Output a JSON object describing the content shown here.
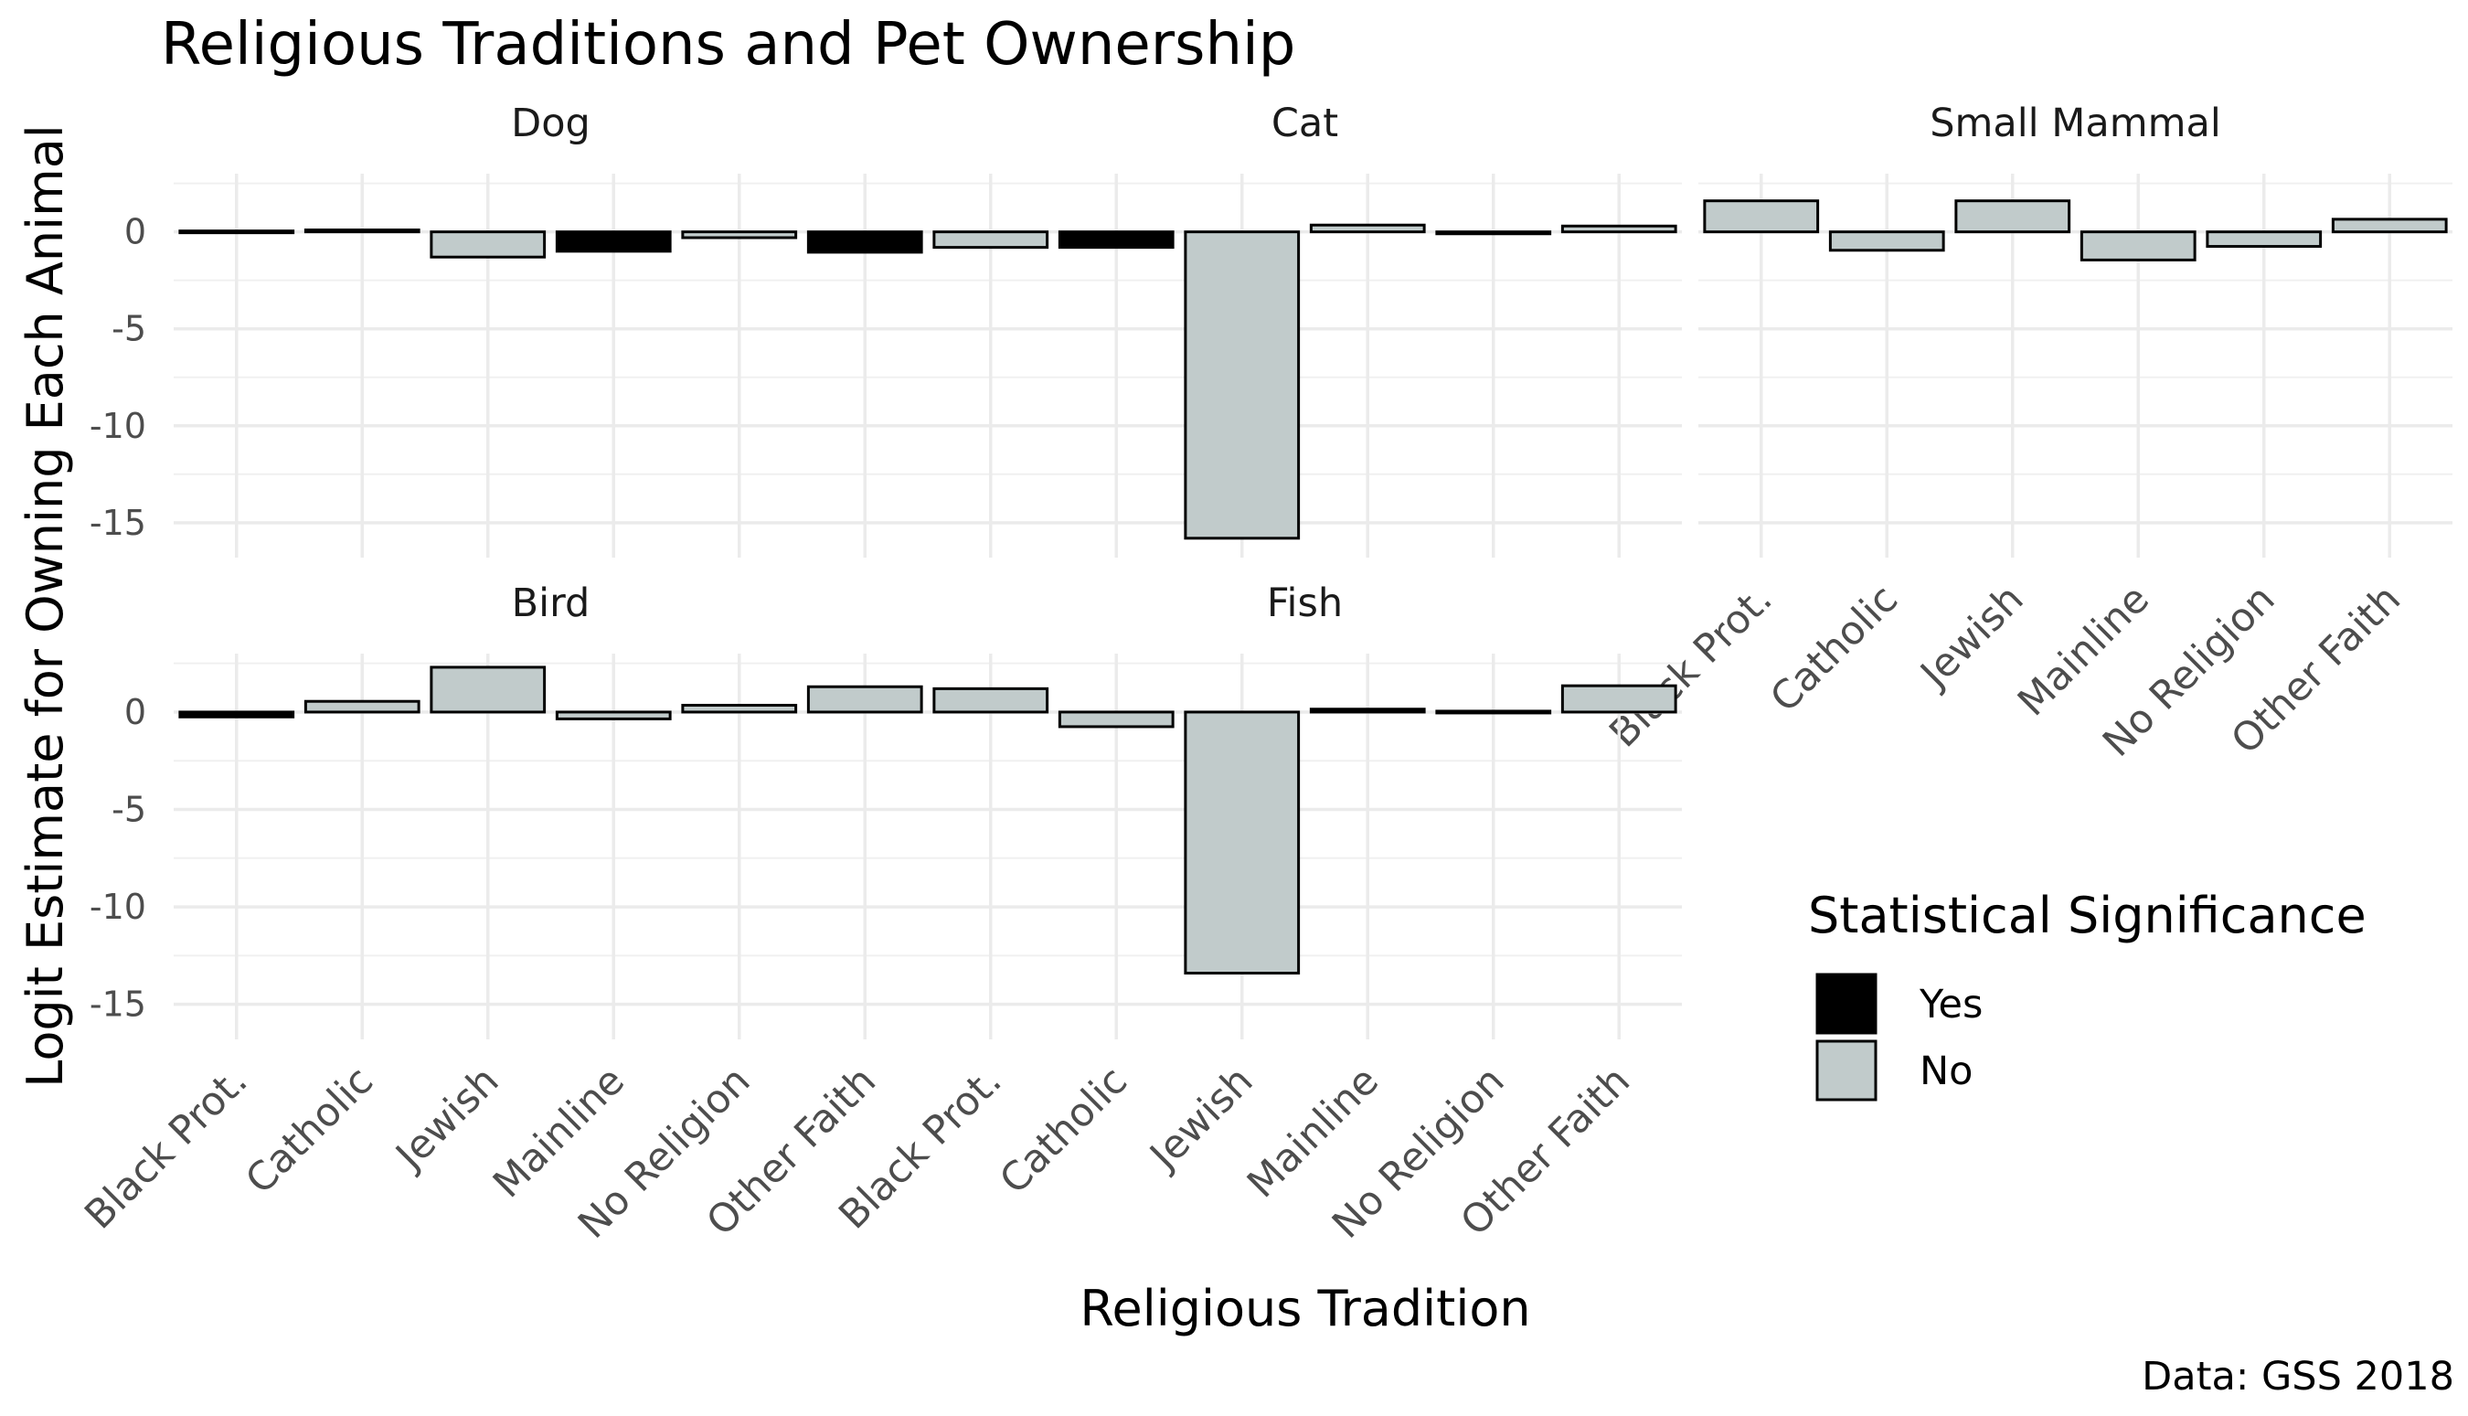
{
  "chart_data": {
    "type": "bar",
    "title": "Religious Traditions and Pet Ownership",
    "xlabel": "Religious Tradition",
    "ylabel": "Logit Estimate for Owning Each Animal",
    "caption": "Data: GSS 2018",
    "categories": [
      "Black Prot.",
      "Catholic",
      "Jewish",
      "Mainline",
      "No Religion",
      "Other Faith"
    ],
    "yticks": [
      0,
      -5,
      -10,
      -15
    ],
    "ylim": [
      -16.8,
      3.0
    ],
    "grid": true,
    "legend": {
      "title": "Statistical Significance",
      "position": "right",
      "entries": [
        {
          "label": "Yes",
          "color": "#000000"
        },
        {
          "label": "No",
          "color": "#c1cbcb"
        }
      ]
    },
    "panels": [
      {
        "name": "Dog",
        "values": [
          -0.05,
          0.1,
          -1.3,
          -1.0,
          -0.3,
          -1.05
        ],
        "significant": [
          "Yes",
          "Yes",
          "No",
          "Yes",
          "No",
          "Yes"
        ]
      },
      {
        "name": "Cat",
        "values": [
          -0.8,
          -0.8,
          -15.8,
          0.35,
          -0.1,
          0.3
        ],
        "significant": [
          "No",
          "Yes",
          "No",
          "No",
          "No",
          "No"
        ]
      },
      {
        "name": "Small Mammal",
        "values": [
          1.6,
          -0.95,
          1.6,
          -1.45,
          -0.75,
          0.65
        ],
        "significant": [
          "No",
          "No",
          "No",
          "No",
          "No",
          "No"
        ]
      },
      {
        "name": "Bird",
        "values": [
          -0.25,
          0.55,
          2.3,
          -0.35,
          0.35,
          1.3
        ],
        "significant": [
          "Yes",
          "No",
          "No",
          "No",
          "No",
          "No"
        ]
      },
      {
        "name": "Fish",
        "values": [
          1.2,
          -0.75,
          -13.4,
          0.15,
          -0.05,
          1.35
        ],
        "significant": [
          "No",
          "No",
          "No",
          "Yes",
          "No",
          "No"
        ]
      }
    ]
  }
}
